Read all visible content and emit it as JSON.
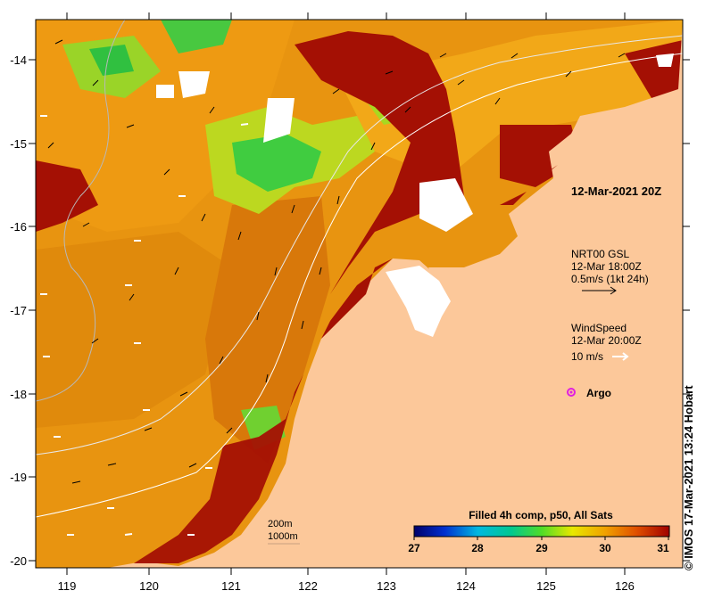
{
  "map": {
    "date_label": "12-Mar-2021 20Z",
    "lon_ticks": [
      "119",
      "120",
      "121",
      "122",
      "123",
      "124",
      "125",
      "126"
    ],
    "lat_ticks": [
      "-14",
      "-15",
      "-16",
      "-17",
      "-18",
      "-19",
      "-20"
    ],
    "legend_currents": {
      "source": "NRT00 GSL",
      "time": "12-Mar 18:00Z",
      "scale": "0.5m/s (1kt 24h)"
    },
    "legend_wind": {
      "title": "WindSpeed",
      "time": "12-Mar 20:00Z",
      "scale": "10 m/s"
    },
    "argo_label": "Argo",
    "isobaths": [
      "200m",
      "1000m"
    ],
    "colorbar": {
      "title": "Filled 4h comp, p50, All Sats",
      "ticks": [
        "27",
        "28",
        "29",
        "30",
        "31"
      ]
    },
    "credit": "© IMOS 17-Mar-2021 13:24 Hobart",
    "colors": {
      "land": "#fcc89a",
      "sst_hot": "#a20f05",
      "sst_warm": "#e0820a",
      "sst_mid": "#f0a814",
      "sst_cool": "#38cc38",
      "argo": "#e020e0"
    }
  }
}
